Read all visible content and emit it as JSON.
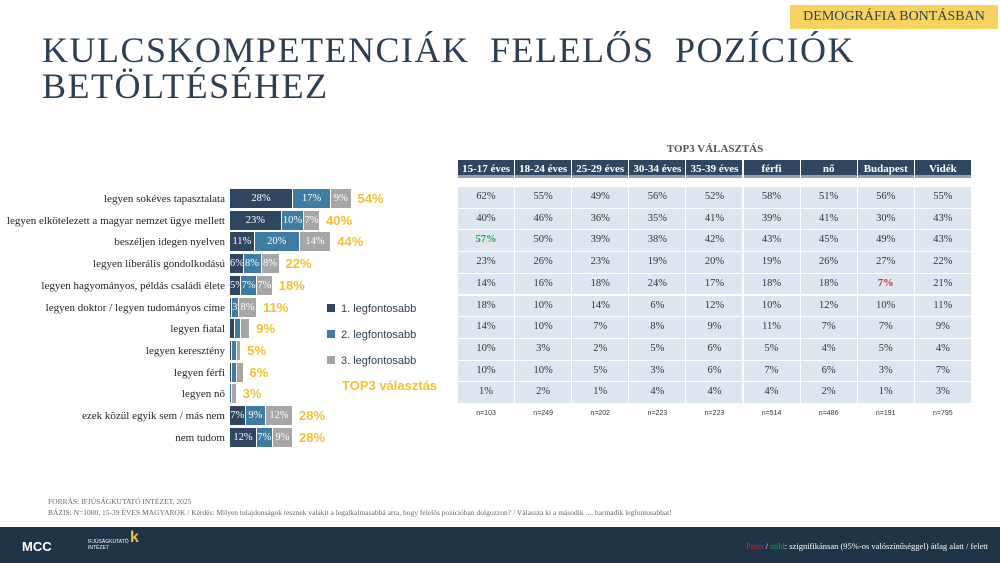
{
  "header": {
    "badge": "DEMOGRÁFIA BONTÁSBAN",
    "title": "KULCSKOMPETENCIÁK FELELŐS POZÍCIÓK BETÖLTÉSÉHEZ"
  },
  "chart_data": [
    {
      "type": "bar",
      "orientation": "horizontal",
      "stacked": true,
      "categories": [
        "legyen sokéves tapasztalata",
        "legyen elkötelezett a magyar nemzet ügye mellett",
        "beszéljen idegen nyelven",
        "legyen liberális gondolkodású",
        "legyen hagyományos, példás családi élete",
        "legyen doktor / legyen tudományos címe",
        "legyen fiatal",
        "legyen keresztény",
        "legyen férfi",
        "legyen nő",
        "ezek közül egyik sem / más nem",
        "nem tudom"
      ],
      "series": [
        {
          "name": "1. legfontosabb",
          "color": "#2e4660",
          "values": [
            28,
            23,
            11,
            6,
            5,
            1,
            2,
            1,
            1,
            0,
            7,
            12
          ],
          "labels": [
            "28%",
            "23%",
            "11%",
            "6%",
            "5%",
            "",
            "",
            "",
            "",
            "",
            "7%",
            "12%"
          ]
        },
        {
          "name": "2. legfontosabb",
          "color": "#3e7ca3",
          "values": [
            17,
            10,
            20,
            8,
            7,
            3,
            3,
            2,
            2,
            1,
            9,
            7
          ],
          "labels": [
            "17%",
            "10%",
            "20%",
            "8%",
            "7%",
            "3%",
            "",
            "",
            "",
            "",
            "9%",
            "7%"
          ]
        },
        {
          "name": "3. legfontosabb",
          "color": "#a6a6a6",
          "values": [
            9,
            7,
            14,
            8,
            7,
            8,
            4,
            2,
            3,
            2,
            12,
            9
          ],
          "labels": [
            "9%",
            "7%",
            "14%",
            "8%",
            "7%",
            "8%",
            "",
            "",
            "",
            "",
            "12%",
            "9%"
          ]
        }
      ],
      "totals_label": "TOP3 választás",
      "totals": [
        "54%",
        "40%",
        "44%",
        "22%",
        "18%",
        "11%",
        "9%",
        "5%",
        "6%",
        "3%",
        "28%",
        "28%"
      ]
    },
    {
      "type": "table",
      "title": "TOP3 VÁLASZTÁS",
      "columns": [
        "15-17 éves",
        "18-24 éves",
        "25-29 éves",
        "30-34 éves",
        "35-39 éves",
        "férfi",
        "nő",
        "Budapest",
        "Vidék"
      ],
      "rows": [
        [
          "62%",
          "55%",
          "49%",
          "56%",
          "52%",
          "58%",
          "51%",
          "56%",
          "55%"
        ],
        [
          "40%",
          "46%",
          "36%",
          "35%",
          "41%",
          "39%",
          "41%",
          "30%",
          "43%"
        ],
        [
          "57%",
          "50%",
          "39%",
          "38%",
          "42%",
          "43%",
          "45%",
          "49%",
          "43%"
        ],
        [
          "23%",
          "26%",
          "23%",
          "19%",
          "20%",
          "19%",
          "26%",
          "27%",
          "22%"
        ],
        [
          "14%",
          "16%",
          "18%",
          "24%",
          "17%",
          "18%",
          "18%",
          "7%",
          "21%"
        ],
        [
          "18%",
          "10%",
          "14%",
          "6%",
          "12%",
          "10%",
          "12%",
          "10%",
          "11%"
        ],
        [
          "14%",
          "10%",
          "7%",
          "8%",
          "9%",
          "11%",
          "7%",
          "7%",
          "9%"
        ],
        [
          "10%",
          "3%",
          "2%",
          "5%",
          "6%",
          "5%",
          "4%",
          "5%",
          "4%"
        ],
        [
          "10%",
          "10%",
          "5%",
          "3%",
          "6%",
          "7%",
          "6%",
          "3%",
          "7%"
        ],
        [
          "1%",
          "2%",
          "1%",
          "4%",
          "4%",
          "4%",
          "2%",
          "1%",
          "3%"
        ]
      ],
      "highlights": [
        {
          "row": 2,
          "col": 0,
          "color": "#1fa34a"
        },
        {
          "row": 4,
          "col": 7,
          "color": "#e0262b"
        }
      ],
      "n": [
        "n=103",
        "n=249",
        "n=202",
        "n=223",
        "n=223",
        "n=514",
        "n=486",
        "n=191",
        "n=795"
      ]
    }
  ],
  "footer": {
    "source": "FORRÁS: IFJÚSÁGKUTATÓ INTÉZET, 2025",
    "base": "BÁZIS: N=1000, 15-39 ÉVES MAGYAROK / Kérdés: Milyen tulajdonságok tesznek valakit a legalkalmasabbá arra, hogy felelős pozícióban dolgozzon? / Válassza ki a második .... harmadik legfontosabbat!",
    "logo_mcc": "MCC",
    "logo_institute": "IFJÚSÁGKUTATÓ INTÉZET",
    "note_red": "Piros",
    "note_sep": " / ",
    "note_green": "zöld",
    "note_rest": ": szignifikánsan (95%-os valószínűséggel) átlag alatt / felett",
    "red": "#e0262b",
    "green": "#1fa34a"
  }
}
